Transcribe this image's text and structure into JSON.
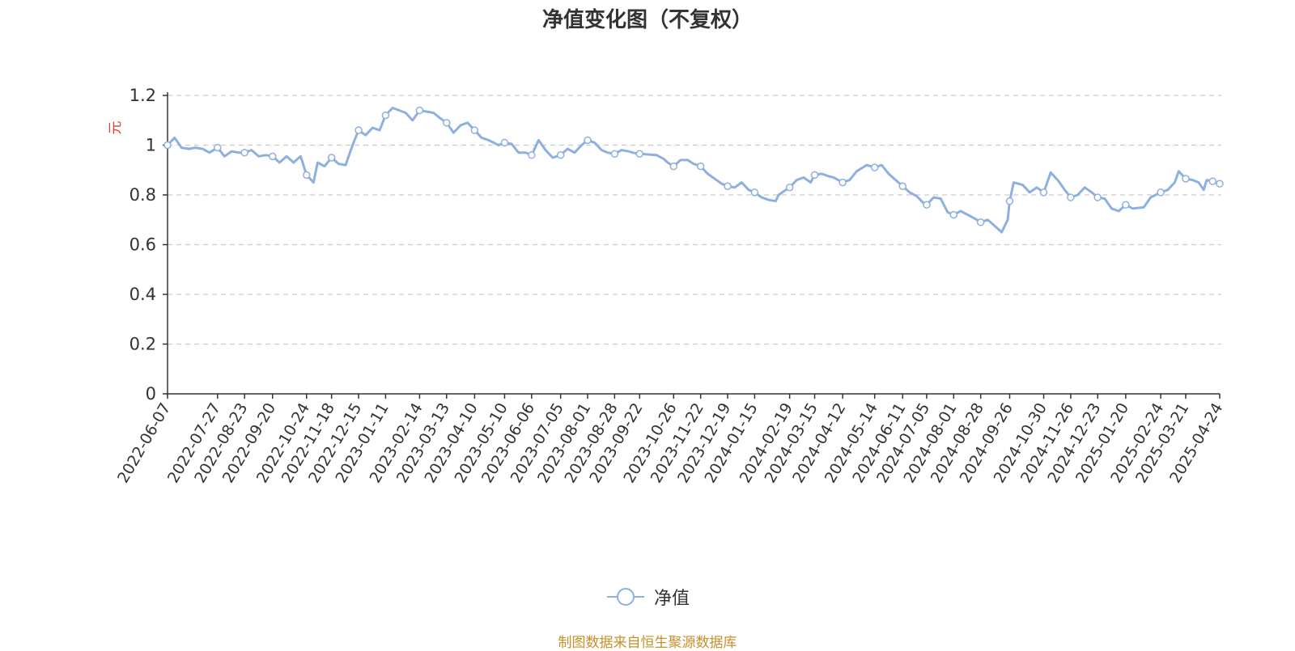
{
  "chart_data": {
    "type": "line",
    "title": "净值变化图（不复权）",
    "ylabel": "元",
    "ylim": [
      0,
      1.2
    ],
    "yticks": [
      "0",
      "0.2",
      "0.4",
      "0.6",
      "0.8",
      "1",
      "1.2"
    ],
    "grid": true,
    "legend_position": "bottom",
    "x_tick_labels": [
      "2022-06-07",
      "2022-07-27",
      "2022-08-23",
      "2022-09-20",
      "2022-10-24",
      "2022-11-18",
      "2022-12-15",
      "2023-01-11",
      "2023-02-14",
      "2023-03-13",
      "2023-04-10",
      "2023-05-10",
      "2023-06-06",
      "2023-07-05",
      "2023-08-01",
      "2023-08-28",
      "2023-09-22",
      "2023-10-26",
      "2023-11-22",
      "2023-12-19",
      "2024-01-15",
      "2024-02-19",
      "2024-03-15",
      "2024-04-12",
      "2024-05-14",
      "2024-06-11",
      "2024-07-05",
      "2024-08-01",
      "2024-08-28",
      "2024-09-26",
      "2024-10-30",
      "2024-11-26",
      "2024-12-23",
      "2025-01-20",
      "2025-02-24",
      "2025-03-21",
      "2025-04-24"
    ],
    "series": [
      {
        "name": "净值",
        "color": "#8eb0df",
        "points": [
          {
            "x": "2022-06-07",
            "y": 1.0
          },
          {
            "x": "2022-06-14",
            "y": 1.03
          },
          {
            "x": "2022-06-21",
            "y": 0.99
          },
          {
            "x": "2022-06-28",
            "y": 0.985
          },
          {
            "x": "2022-07-05",
            "y": 0.99
          },
          {
            "x": "2022-07-12",
            "y": 0.985
          },
          {
            "x": "2022-07-19",
            "y": 0.97
          },
          {
            "x": "2022-07-27",
            "y": 0.99
          },
          {
            "x": "2022-08-03",
            "y": 0.955
          },
          {
            "x": "2022-08-10",
            "y": 0.975
          },
          {
            "x": "2022-08-17",
            "y": 0.97
          },
          {
            "x": "2022-08-23",
            "y": 0.97
          },
          {
            "x": "2022-08-30",
            "y": 0.98
          },
          {
            "x": "2022-09-06",
            "y": 0.955
          },
          {
            "x": "2022-09-13",
            "y": 0.96
          },
          {
            "x": "2022-09-20",
            "y": 0.955
          },
          {
            "x": "2022-09-27",
            "y": 0.93
          },
          {
            "x": "2022-10-04",
            "y": 0.955
          },
          {
            "x": "2022-10-11",
            "y": 0.93
          },
          {
            "x": "2022-10-18",
            "y": 0.955
          },
          {
            "x": "2022-10-24",
            "y": 0.88
          },
          {
            "x": "2022-10-31",
            "y": 0.85
          },
          {
            "x": "2022-11-04",
            "y": 0.93
          },
          {
            "x": "2022-11-11",
            "y": 0.915
          },
          {
            "x": "2022-11-18",
            "y": 0.95
          },
          {
            "x": "2022-11-25",
            "y": 0.925
          },
          {
            "x": "2022-12-02",
            "y": 0.92
          },
          {
            "x": "2022-12-09",
            "y": 1.0
          },
          {
            "x": "2022-12-15",
            "y": 1.06
          },
          {
            "x": "2022-12-22",
            "y": 1.04
          },
          {
            "x": "2022-12-29",
            "y": 1.07
          },
          {
            "x": "2023-01-05",
            "y": 1.06
          },
          {
            "x": "2023-01-11",
            "y": 1.12
          },
          {
            "x": "2023-01-18",
            "y": 1.15
          },
          {
            "x": "2023-01-31",
            "y": 1.13
          },
          {
            "x": "2023-02-07",
            "y": 1.1
          },
          {
            "x": "2023-02-14",
            "y": 1.14
          },
          {
            "x": "2023-02-21",
            "y": 1.135
          },
          {
            "x": "2023-02-28",
            "y": 1.13
          },
          {
            "x": "2023-03-06",
            "y": 1.11
          },
          {
            "x": "2023-03-13",
            "y": 1.09
          },
          {
            "x": "2023-03-20",
            "y": 1.05
          },
          {
            "x": "2023-03-27",
            "y": 1.08
          },
          {
            "x": "2023-04-03",
            "y": 1.09
          },
          {
            "x": "2023-04-10",
            "y": 1.06
          },
          {
            "x": "2023-04-17",
            "y": 1.03
          },
          {
            "x": "2023-04-24",
            "y": 1.02
          },
          {
            "x": "2023-05-04",
            "y": 1.0
          },
          {
            "x": "2023-05-10",
            "y": 1.01
          },
          {
            "x": "2023-05-17",
            "y": 1.005
          },
          {
            "x": "2023-05-24",
            "y": 0.97
          },
          {
            "x": "2023-05-31",
            "y": 0.97
          },
          {
            "x": "2023-06-06",
            "y": 0.96
          },
          {
            "x": "2023-06-13",
            "y": 1.02
          },
          {
            "x": "2023-06-20",
            "y": 0.98
          },
          {
            "x": "2023-06-27",
            "y": 0.95
          },
          {
            "x": "2023-07-05",
            "y": 0.96
          },
          {
            "x": "2023-07-12",
            "y": 0.985
          },
          {
            "x": "2023-07-19",
            "y": 0.97
          },
          {
            "x": "2023-07-26",
            "y": 1.0
          },
          {
            "x": "2023-08-01",
            "y": 1.02
          },
          {
            "x": "2023-08-08",
            "y": 1.01
          },
          {
            "x": "2023-08-15",
            "y": 0.98
          },
          {
            "x": "2023-08-21",
            "y": 0.97
          },
          {
            "x": "2023-08-28",
            "y": 0.965
          },
          {
            "x": "2023-09-04",
            "y": 0.98
          },
          {
            "x": "2023-09-11",
            "y": 0.975
          },
          {
            "x": "2023-09-15",
            "y": 0.97
          },
          {
            "x": "2023-09-22",
            "y": 0.965
          },
          {
            "x": "2023-10-09",
            "y": 0.96
          },
          {
            "x": "2023-10-16",
            "y": 0.945
          },
          {
            "x": "2023-10-20",
            "y": 0.93
          },
          {
            "x": "2023-10-26",
            "y": 0.915
          },
          {
            "x": "2023-11-02",
            "y": 0.94
          },
          {
            "x": "2023-11-09",
            "y": 0.94
          },
          {
            "x": "2023-11-15",
            "y": 0.925
          },
          {
            "x": "2023-11-22",
            "y": 0.915
          },
          {
            "x": "2023-11-29",
            "y": 0.885
          },
          {
            "x": "2023-12-06",
            "y": 0.865
          },
          {
            "x": "2023-12-13",
            "y": 0.845
          },
          {
            "x": "2023-12-19",
            "y": 0.835
          },
          {
            "x": "2023-12-26",
            "y": 0.83
          },
          {
            "x": "2024-01-02",
            "y": 0.85
          },
          {
            "x": "2024-01-09",
            "y": 0.82
          },
          {
            "x": "2024-01-15",
            "y": 0.81
          },
          {
            "x": "2024-01-22",
            "y": 0.79
          },
          {
            "x": "2024-01-29",
            "y": 0.78
          },
          {
            "x": "2024-02-05",
            "y": 0.775
          },
          {
            "x": "2024-02-08",
            "y": 0.8
          },
          {
            "x": "2024-02-19",
            "y": 0.83
          },
          {
            "x": "2024-02-26",
            "y": 0.86
          },
          {
            "x": "2024-03-04",
            "y": 0.87
          },
          {
            "x": "2024-03-11",
            "y": 0.85
          },
          {
            "x": "2024-03-15",
            "y": 0.88
          },
          {
            "x": "2024-03-22",
            "y": 0.885
          },
          {
            "x": "2024-03-29",
            "y": 0.875
          },
          {
            "x": "2024-04-03",
            "y": 0.87
          },
          {
            "x": "2024-04-12",
            "y": 0.85
          },
          {
            "x": "2024-04-19",
            "y": 0.86
          },
          {
            "x": "2024-04-26",
            "y": 0.895
          },
          {
            "x": "2024-05-06",
            "y": 0.92
          },
          {
            "x": "2024-05-14",
            "y": 0.91
          },
          {
            "x": "2024-05-21",
            "y": 0.92
          },
          {
            "x": "2024-05-28",
            "y": 0.885
          },
          {
            "x": "2024-06-04",
            "y": 0.86
          },
          {
            "x": "2024-06-11",
            "y": 0.835
          },
          {
            "x": "2024-06-18",
            "y": 0.81
          },
          {
            "x": "2024-06-25",
            "y": 0.795
          },
          {
            "x": "2024-07-01",
            "y": 0.77
          },
          {
            "x": "2024-07-05",
            "y": 0.76
          },
          {
            "x": "2024-07-12",
            "y": 0.79
          },
          {
            "x": "2024-07-19",
            "y": 0.785
          },
          {
            "x": "2024-07-26",
            "y": 0.73
          },
          {
            "x": "2024-08-01",
            "y": 0.72
          },
          {
            "x": "2024-08-08",
            "y": 0.735
          },
          {
            "x": "2024-08-15",
            "y": 0.72
          },
          {
            "x": "2024-08-22",
            "y": 0.705
          },
          {
            "x": "2024-08-28",
            "y": 0.69
          },
          {
            "x": "2024-09-04",
            "y": 0.7
          },
          {
            "x": "2024-09-11",
            "y": 0.675
          },
          {
            "x": "2024-09-18",
            "y": 0.65
          },
          {
            "x": "2024-09-24",
            "y": 0.7
          },
          {
            "x": "2024-09-26",
            "y": 0.775
          },
          {
            "x": "2024-09-30",
            "y": 0.85
          },
          {
            "x": "2024-10-09",
            "y": 0.84
          },
          {
            "x": "2024-10-16",
            "y": 0.81
          },
          {
            "x": "2024-10-23",
            "y": 0.83
          },
          {
            "x": "2024-10-30",
            "y": 0.81
          },
          {
            "x": "2024-11-06",
            "y": 0.89
          },
          {
            "x": "2024-11-13",
            "y": 0.86
          },
          {
            "x": "2024-11-20",
            "y": 0.82
          },
          {
            "x": "2024-11-26",
            "y": 0.79
          },
          {
            "x": "2024-12-03",
            "y": 0.8
          },
          {
            "x": "2024-12-10",
            "y": 0.83
          },
          {
            "x": "2024-12-17",
            "y": 0.81
          },
          {
            "x": "2024-12-23",
            "y": 0.79
          },
          {
            "x": "2024-12-30",
            "y": 0.785
          },
          {
            "x": "2025-01-06",
            "y": 0.745
          },
          {
            "x": "2025-01-13",
            "y": 0.735
          },
          {
            "x": "2025-01-20",
            "y": 0.76
          },
          {
            "x": "2025-01-27",
            "y": 0.745
          },
          {
            "x": "2025-02-07",
            "y": 0.75
          },
          {
            "x": "2025-02-14",
            "y": 0.79
          },
          {
            "x": "2025-02-24",
            "y": 0.81
          },
          {
            "x": "2025-03-03",
            "y": 0.82
          },
          {
            "x": "2025-03-10",
            "y": 0.85
          },
          {
            "x": "2025-03-14",
            "y": 0.895
          },
          {
            "x": "2025-03-21",
            "y": 0.865
          },
          {
            "x": "2025-03-28",
            "y": 0.86
          },
          {
            "x": "2025-04-03",
            "y": 0.85
          },
          {
            "x": "2025-04-08",
            "y": 0.82
          },
          {
            "x": "2025-04-11",
            "y": 0.86
          },
          {
            "x": "2025-04-17",
            "y": 0.855
          },
          {
            "x": "2025-04-24",
            "y": 0.845
          }
        ],
        "markers": [
          {
            "x": "2022-06-07",
            "y": 1.0
          },
          {
            "x": "2022-07-27",
            "y": 0.99
          },
          {
            "x": "2022-08-23",
            "y": 0.97
          },
          {
            "x": "2022-09-20",
            "y": 0.955
          },
          {
            "x": "2022-10-24",
            "y": 0.88
          },
          {
            "x": "2022-11-18",
            "y": 0.95
          },
          {
            "x": "2022-12-15",
            "y": 1.06
          },
          {
            "x": "2023-01-11",
            "y": 1.12
          },
          {
            "x": "2023-02-14",
            "y": 1.14
          },
          {
            "x": "2023-03-13",
            "y": 1.09
          },
          {
            "x": "2023-04-10",
            "y": 1.06
          },
          {
            "x": "2023-05-10",
            "y": 1.01
          },
          {
            "x": "2023-06-06",
            "y": 0.96
          },
          {
            "x": "2023-07-05",
            "y": 0.96
          },
          {
            "x": "2023-08-01",
            "y": 1.02
          },
          {
            "x": "2023-08-28",
            "y": 0.965
          },
          {
            "x": "2023-09-22",
            "y": 0.965
          },
          {
            "x": "2023-10-26",
            "y": 0.915
          },
          {
            "x": "2023-11-22",
            "y": 0.915
          },
          {
            "x": "2023-12-19",
            "y": 0.835
          },
          {
            "x": "2024-01-15",
            "y": 0.81
          },
          {
            "x": "2024-02-19",
            "y": 0.83
          },
          {
            "x": "2024-03-15",
            "y": 0.88
          },
          {
            "x": "2024-04-12",
            "y": 0.85
          },
          {
            "x": "2024-05-14",
            "y": 0.91
          },
          {
            "x": "2024-06-11",
            "y": 0.835
          },
          {
            "x": "2024-07-05",
            "y": 0.76
          },
          {
            "x": "2024-08-01",
            "y": 0.72
          },
          {
            "x": "2024-08-28",
            "y": 0.69
          },
          {
            "x": "2024-09-26",
            "y": 0.775
          },
          {
            "x": "2024-10-30",
            "y": 0.81
          },
          {
            "x": "2024-11-26",
            "y": 0.79
          },
          {
            "x": "2024-12-23",
            "y": 0.79
          },
          {
            "x": "2025-01-20",
            "y": 0.76
          },
          {
            "x": "2025-02-24",
            "y": 0.81
          },
          {
            "x": "2025-03-21",
            "y": 0.865
          },
          {
            "x": "2025-04-17",
            "y": 0.855
          },
          {
            "x": "2025-04-24",
            "y": 0.845
          }
        ]
      }
    ]
  },
  "legend": {
    "label": "净值"
  },
  "footer": {
    "source": "制图数据来自恒生聚源数据库"
  }
}
